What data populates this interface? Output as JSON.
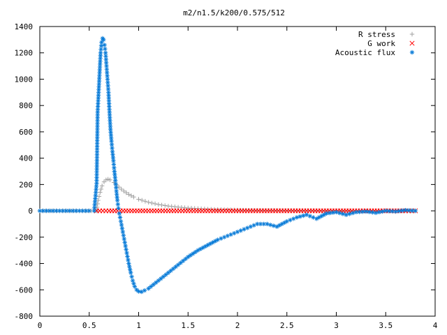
{
  "chart_data": {
    "type": "scatter",
    "title": "m2/n1.5/k200/0.575/512",
    "xlabel": "",
    "ylabel": "",
    "xlim": [
      0,
      4
    ],
    "ylim": [
      -800,
      1400
    ],
    "xticks": [
      "0",
      "0.5",
      "1",
      "1.5",
      "2",
      "2.5",
      "3",
      "3.5",
      "4"
    ],
    "yticks": [
      "1400",
      "1200",
      "1000",
      "800",
      "600",
      "400",
      "200",
      "0",
      "-200",
      "-400",
      "-600",
      "-800"
    ],
    "grid": false,
    "legend_position": "top-right",
    "series": [
      {
        "name": "R stress",
        "marker": "plus",
        "color": "#a0a0a0",
        "points": [
          [
            0.0,
            0
          ],
          [
            0.2,
            0
          ],
          [
            0.4,
            0
          ],
          [
            0.55,
            0
          ],
          [
            0.575,
            0
          ],
          [
            0.59,
            80
          ],
          [
            0.61,
            140
          ],
          [
            0.63,
            190
          ],
          [
            0.65,
            220
          ],
          [
            0.67,
            235
          ],
          [
            0.69,
            240
          ],
          [
            0.71,
            235
          ],
          [
            0.75,
            215
          ],
          [
            0.8,
            180
          ],
          [
            0.85,
            150
          ],
          [
            0.9,
            125
          ],
          [
            0.95,
            105
          ],
          [
            1.0,
            88
          ],
          [
            1.1,
            65
          ],
          [
            1.2,
            48
          ],
          [
            1.3,
            36
          ],
          [
            1.4,
            28
          ],
          [
            1.5,
            22
          ],
          [
            1.6,
            17
          ],
          [
            1.7,
            13
          ],
          [
            1.8,
            10
          ],
          [
            1.9,
            8
          ],
          [
            2.0,
            6
          ],
          [
            2.2,
            4
          ],
          [
            2.4,
            3
          ],
          [
            2.6,
            2
          ],
          [
            2.8,
            1
          ],
          [
            3.0,
            1
          ],
          [
            3.2,
            0
          ],
          [
            3.4,
            0
          ],
          [
            3.6,
            0
          ],
          [
            3.8,
            0
          ]
        ]
      },
      {
        "name": "G work",
        "marker": "x",
        "color": "#ff0000",
        "points": [
          [
            0.575,
            0
          ],
          [
            0.7,
            0
          ],
          [
            0.9,
            0
          ],
          [
            1.1,
            0
          ],
          [
            1.3,
            0
          ],
          [
            1.5,
            0
          ],
          [
            1.7,
            0
          ],
          [
            1.9,
            0
          ],
          [
            2.1,
            0
          ],
          [
            2.3,
            0
          ],
          [
            2.5,
            0
          ],
          [
            2.7,
            0
          ],
          [
            2.9,
            0
          ],
          [
            3.1,
            0
          ],
          [
            3.3,
            0
          ],
          [
            3.5,
            0
          ],
          [
            3.7,
            0
          ],
          [
            3.8,
            0
          ]
        ]
      },
      {
        "name": "Acoustic flux",
        "marker": "asterisk",
        "color": "#0a7cd8",
        "points": [
          [
            0.0,
            0
          ],
          [
            0.1,
            0
          ],
          [
            0.2,
            0
          ],
          [
            0.3,
            0
          ],
          [
            0.4,
            0
          ],
          [
            0.5,
            0
          ],
          [
            0.55,
            0
          ],
          [
            0.575,
            210
          ],
          [
            0.585,
            750
          ],
          [
            0.595,
            900
          ],
          [
            0.605,
            1050
          ],
          [
            0.615,
            1200
          ],
          [
            0.625,
            1280
          ],
          [
            0.635,
            1310
          ],
          [
            0.645,
            1300
          ],
          [
            0.655,
            1260
          ],
          [
            0.665,
            1200
          ],
          [
            0.675,
            1100
          ],
          [
            0.685,
            1000
          ],
          [
            0.695,
            900
          ],
          [
            0.705,
            750
          ],
          [
            0.715,
            620
          ],
          [
            0.725,
            530
          ],
          [
            0.735,
            450
          ],
          [
            0.745,
            380
          ],
          [
            0.755,
            300
          ],
          [
            0.765,
            230
          ],
          [
            0.775,
            150
          ],
          [
            0.785,
            80
          ],
          [
            0.795,
            20
          ],
          [
            0.805,
            -20
          ],
          [
            0.82,
            -80
          ],
          [
            0.84,
            -160
          ],
          [
            0.86,
            -240
          ],
          [
            0.88,
            -320
          ],
          [
            0.9,
            -400
          ],
          [
            0.92,
            -470
          ],
          [
            0.94,
            -530
          ],
          [
            0.96,
            -575
          ],
          [
            0.98,
            -600
          ],
          [
            1.0,
            -612
          ],
          [
            1.03,
            -615
          ],
          [
            1.06,
            -605
          ],
          [
            1.1,
            -590
          ],
          [
            1.15,
            -560
          ],
          [
            1.2,
            -530
          ],
          [
            1.3,
            -470
          ],
          [
            1.4,
            -410
          ],
          [
            1.5,
            -350
          ],
          [
            1.6,
            -300
          ],
          [
            1.7,
            -260
          ],
          [
            1.8,
            -220
          ],
          [
            1.9,
            -190
          ],
          [
            2.0,
            -160
          ],
          [
            2.1,
            -130
          ],
          [
            2.2,
            -100
          ],
          [
            2.3,
            -100
          ],
          [
            2.4,
            -120
          ],
          [
            2.5,
            -80
          ],
          [
            2.6,
            -50
          ],
          [
            2.7,
            -30
          ],
          [
            2.8,
            -60
          ],
          [
            2.9,
            -20
          ],
          [
            3.0,
            -10
          ],
          [
            3.1,
            -30
          ],
          [
            3.2,
            -10
          ],
          [
            3.3,
            -5
          ],
          [
            3.4,
            -15
          ],
          [
            3.5,
            0
          ],
          [
            3.6,
            -5
          ],
          [
            3.7,
            5
          ],
          [
            3.8,
            0
          ]
        ]
      }
    ]
  }
}
